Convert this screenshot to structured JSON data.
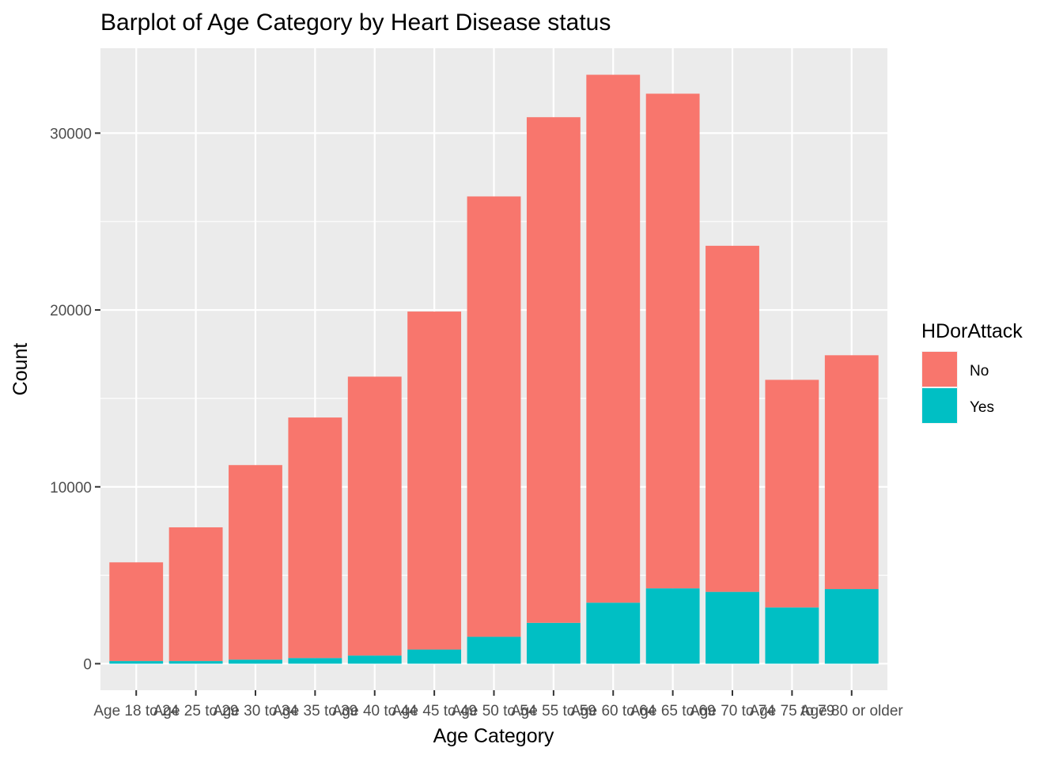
{
  "chart_data": {
    "type": "bar",
    "stacked": true,
    "title": "Barplot of Age Category by Heart Disease status",
    "xlabel": "Age Category",
    "ylabel": "Count",
    "ylim": [
      -1500,
      34800
    ],
    "yticks": [
      0,
      10000,
      20000,
      30000
    ],
    "grid": true,
    "legend_position": "right",
    "legend_title": "HDorAttack",
    "categories": [
      "Age 18 to 24",
      "Age 25 to 29",
      "Age 30 to 34",
      "Age 35 to 39",
      "Age 40 to 44",
      "Age 45 to 49",
      "Age 50 to 54",
      "Age 55 to 59",
      "Age 60 to 64",
      "Age 65 to 69",
      "Age 70 to 74",
      "Age 75 to 79",
      "Age 80 or older"
    ],
    "series": [
      {
        "name": "No",
        "color": "#F8766D",
        "values": [
          5580,
          7560,
          11000,
          13600,
          15770,
          19110,
          24900,
          28590,
          29850,
          27970,
          19570,
          12870,
          13220
        ]
      },
      {
        "name": "Yes",
        "color": "#00BFC4",
        "values": [
          150,
          150,
          230,
          320,
          460,
          800,
          1520,
          2310,
          3450,
          4260,
          4060,
          3180,
          4220
        ]
      }
    ]
  }
}
